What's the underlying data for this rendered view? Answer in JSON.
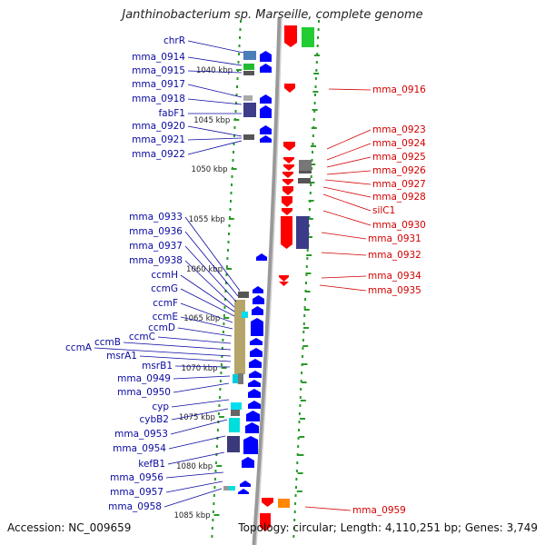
{
  "title": "Janthinobacterium sp. Marseille, complete genome",
  "footer": {
    "accession": "Accession: NC_009659",
    "summary": "Topology: circular; Length: 4,110,251 bp; Genes: 3,749"
  },
  "colors": {
    "reverse_gene": "#ff0000",
    "forward_gene": "#0000ff",
    "reverse_label": "#d40000",
    "forward_label": "#0a0aa0",
    "backbone": "#999999",
    "ring_dot": "#2a9a2a",
    "kbp_text": "#222222"
  },
  "kbp_marks": [
    "1040 kbp",
    "1045 kbp",
    "1050 kbp",
    "1055 kbp",
    "1060 kbp",
    "1065 kbp",
    "1070 kbp",
    "1075 kbp",
    "1080 kbp",
    "1085 kbp"
  ],
  "forward_labels": [
    "chrR",
    "mma_0914",
    "mma_0915",
    "mma_0917",
    "mma_0918",
    "fabF1",
    "mma_0920",
    "mma_0921",
    "mma_0922",
    "mma_0933",
    "mma_0936",
    "mma_0937",
    "mma_0938",
    "ccmH",
    "ccmG",
    "ccmF",
    "ccmE",
    "ccmD",
    "ccmC",
    "ccmB",
    "ccmA",
    "msrA1",
    "msrB1",
    "mma_0949",
    "mma_0950",
    "cyp",
    "cybB2",
    "mma_0953",
    "mma_0954",
    "kefB1",
    "mma_0956",
    "mma_0957",
    "mma_0958"
  ],
  "reverse_labels": [
    "mma_0916",
    "mma_0923",
    "mma_0924",
    "mma_0925",
    "mma_0926",
    "mma_0927",
    "mma_0928",
    "silC1",
    "mma_0930",
    "mma_0931",
    "mma_0932",
    "mma_0934",
    "mma_0935",
    "mma_0959"
  ]
}
